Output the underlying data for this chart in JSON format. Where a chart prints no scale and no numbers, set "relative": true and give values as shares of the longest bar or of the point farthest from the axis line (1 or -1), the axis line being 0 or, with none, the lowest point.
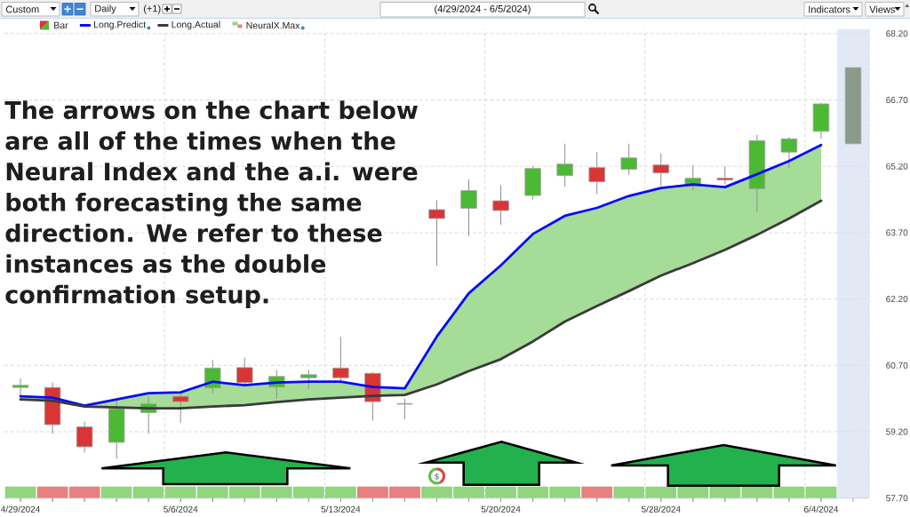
{
  "chart_data": [
    {
      "type": "candlestick",
      "title": "(4/29/2024 - 6/5/2024)",
      "annotations": [
        "The arrows on the chart below are all of the times when the Neural Index and the a.i. were both forecasting the same direction. We refer to these instances as the double confirmation setup.",
        "$",
        "Custom",
        "Daily",
        "(+1)",
        "Indicators",
        "Views"
      ],
      "categories": [
        "4/29/2024",
        null,
        null,
        null,
        null,
        "5/6/2024",
        null,
        null,
        null,
        null,
        "5/13/2024",
        null,
        null,
        null,
        null,
        "5/20/2024",
        null,
        null,
        null,
        null,
        "5/28/2024",
        null,
        null,
        null,
        null,
        "6/4/2024",
        null
      ],
      "series": [
        {
          "name": "Bar",
          "type": "candlestick",
          "ohlc": [
            [
              60.2,
              60.4,
              60.01,
              60.25
            ],
            [
              60.2,
              60.31,
              59.16,
              59.36
            ],
            [
              59.31,
              59.43,
              58.73,
              58.86
            ],
            [
              58.96,
              59.93,
              58.59,
              59.72
            ],
            [
              59.63,
              60.0,
              59.16,
              59.83
            ],
            [
              60.0,
              60.11,
              59.4,
              59.88
            ],
            [
              60.19,
              60.82,
              60.07,
              60.64
            ],
            [
              60.65,
              60.87,
              60.29,
              60.31
            ],
            [
              60.21,
              60.6,
              59.95,
              60.45
            ],
            [
              60.42,
              60.6,
              60.17,
              60.49
            ],
            [
              60.64,
              61.35,
              60.3,
              60.42
            ],
            [
              60.52,
              60.55,
              59.45,
              59.88
            ],
            [
              59.83,
              59.95,
              59.48,
              59.83
            ],
            [
              64.22,
              64.43,
              62.95,
              64.02
            ],
            [
              64.25,
              64.9,
              63.63,
              64.65
            ],
            [
              64.42,
              64.77,
              63.88,
              64.2
            ],
            [
              64.54,
              65.2,
              64.45,
              65.15
            ],
            [
              64.99,
              65.71,
              64.73,
              65.25
            ],
            [
              65.17,
              65.52,
              64.57,
              64.85
            ],
            [
              65.13,
              65.71,
              65.01,
              65.39
            ],
            [
              65.23,
              65.49,
              64.75,
              65.05
            ],
            [
              64.75,
              65.22,
              64.65,
              64.93
            ],
            [
              64.93,
              65.2,
              64.79,
              64.89
            ],
            [
              64.69,
              65.91,
              64.17,
              65.78
            ],
            [
              65.52,
              65.86,
              65.17,
              65.82
            ],
            [
              65.99,
              66.64,
              65.82,
              66.61
            ],
            [
              65.71,
              67.43,
              65.71,
              67.43
            ]
          ],
          "colors": [
            "#4cb934",
            "#d93535",
            "#d93535",
            "#4cb934",
            "#4cb934",
            "#d93535",
            "#4cb934",
            "#d93535",
            "#4cb934",
            "#4cb934",
            "#d93535",
            "#d93535",
            "#a0a0a0",
            "#d93535",
            "#4cb934",
            "#d93535",
            "#4cb934",
            "#4cb934",
            "#d93535",
            "#4cb934",
            "#d93535",
            "#4cb934",
            "#d93535",
            "#4cb934",
            "#4cb934",
            "#4cb934",
            "#8a9b8a"
          ]
        },
        {
          "name": "Long.Predict",
          "type": "line",
          "color": "#0a0af5",
          "values": [
            60.0,
            59.97,
            59.79,
            59.93,
            60.07,
            60.09,
            60.33,
            60.25,
            60.31,
            60.33,
            60.33,
            60.21,
            60.18,
            61.35,
            62.33,
            62.96,
            63.67,
            64.08,
            64.26,
            64.53,
            64.71,
            64.79,
            64.73,
            65.02,
            65.32,
            65.68,
            null
          ],
          "lower": [
            59.93,
            59.9,
            59.77,
            59.75,
            59.73,
            59.73,
            59.77,
            59.8,
            59.87,
            59.93,
            59.97,
            60.01,
            60.03,
            60.27,
            60.57,
            60.84,
            61.24,
            61.69,
            62.04,
            62.38,
            62.73,
            63.01,
            63.31,
            63.65,
            64.02,
            64.42,
            null
          ],
          "upper": [
            60.0,
            59.97,
            59.79,
            59.93,
            60.07,
            60.09,
            60.33,
            60.25,
            60.31,
            60.33,
            60.33,
            60.21,
            60.18,
            61.35,
            62.33,
            62.96,
            63.67,
            64.08,
            64.26,
            64.53,
            64.71,
            64.79,
            64.73,
            65.02,
            65.32,
            65.68,
            null
          ]
        },
        {
          "name": "Long.Actual",
          "type": "line",
          "color": "#3a3a3a",
          "values": [
            59.93,
            59.9,
            59.77,
            59.75,
            59.73,
            59.73,
            59.77,
            59.8,
            59.87,
            59.93,
            59.97,
            60.01,
            60.03,
            60.27,
            60.57,
            60.84,
            61.24,
            61.69,
            62.04,
            62.38,
            62.73,
            63.01,
            63.31,
            63.65,
            64.02,
            64.42,
            null
          ]
        }
      ],
      "ylim": [
        57.7,
        68.3
      ],
      "yticks": [
        {
          "value": 57.7,
          "label": "57.70"
        },
        {
          "value": 59.2,
          "label": "59.20"
        },
        {
          "value": 60.7,
          "label": "60.70"
        },
        {
          "value": 62.2,
          "label": "62.20"
        },
        {
          "value": 63.7,
          "label": "63.70"
        },
        {
          "value": 65.2,
          "label": "65.20"
        },
        {
          "value": 66.7,
          "label": "66.70"
        },
        {
          "value": 68.2,
          "label": "68.20"
        }
      ],
      "grid": true,
      "legend": "top left"
    },
    {
      "type": "bar",
      "relative": true,
      "categories": [
        null,
        null,
        null,
        null,
        null,
        null,
        null,
        null,
        null,
        null,
        null,
        null,
        null,
        null,
        null,
        null,
        null,
        null,
        null,
        null,
        null,
        null,
        null,
        null,
        null,
        null
      ],
      "series": [
        {
          "name": "NeuralX.Max",
          "values": [
            1,
            1,
            1,
            1,
            1,
            1,
            1,
            1,
            1,
            1,
            1,
            1,
            1,
            1,
            1,
            1,
            1,
            1,
            1,
            1,
            1,
            1,
            1,
            1,
            1,
            1
          ],
          "colors": [
            "#92d57e",
            "#e78080",
            "#e78080",
            "#92d57e",
            "#92d57e",
            "#92d57e",
            "#92d57e",
            "#92d57e",
            "#92d57e",
            "#92d57e",
            "#92d57e",
            "#e78080",
            "#e78080",
            "#92d57e",
            "#92d57e",
            "#92d57e",
            "#92d57e",
            "#92d57e",
            "#e78080",
            "#92d57e",
            "#92d57e",
            "#92d57e",
            "#92d57e",
            "#92d57e",
            "#92d57e",
            "#92d57e"
          ]
        }
      ]
    }
  ]
}
